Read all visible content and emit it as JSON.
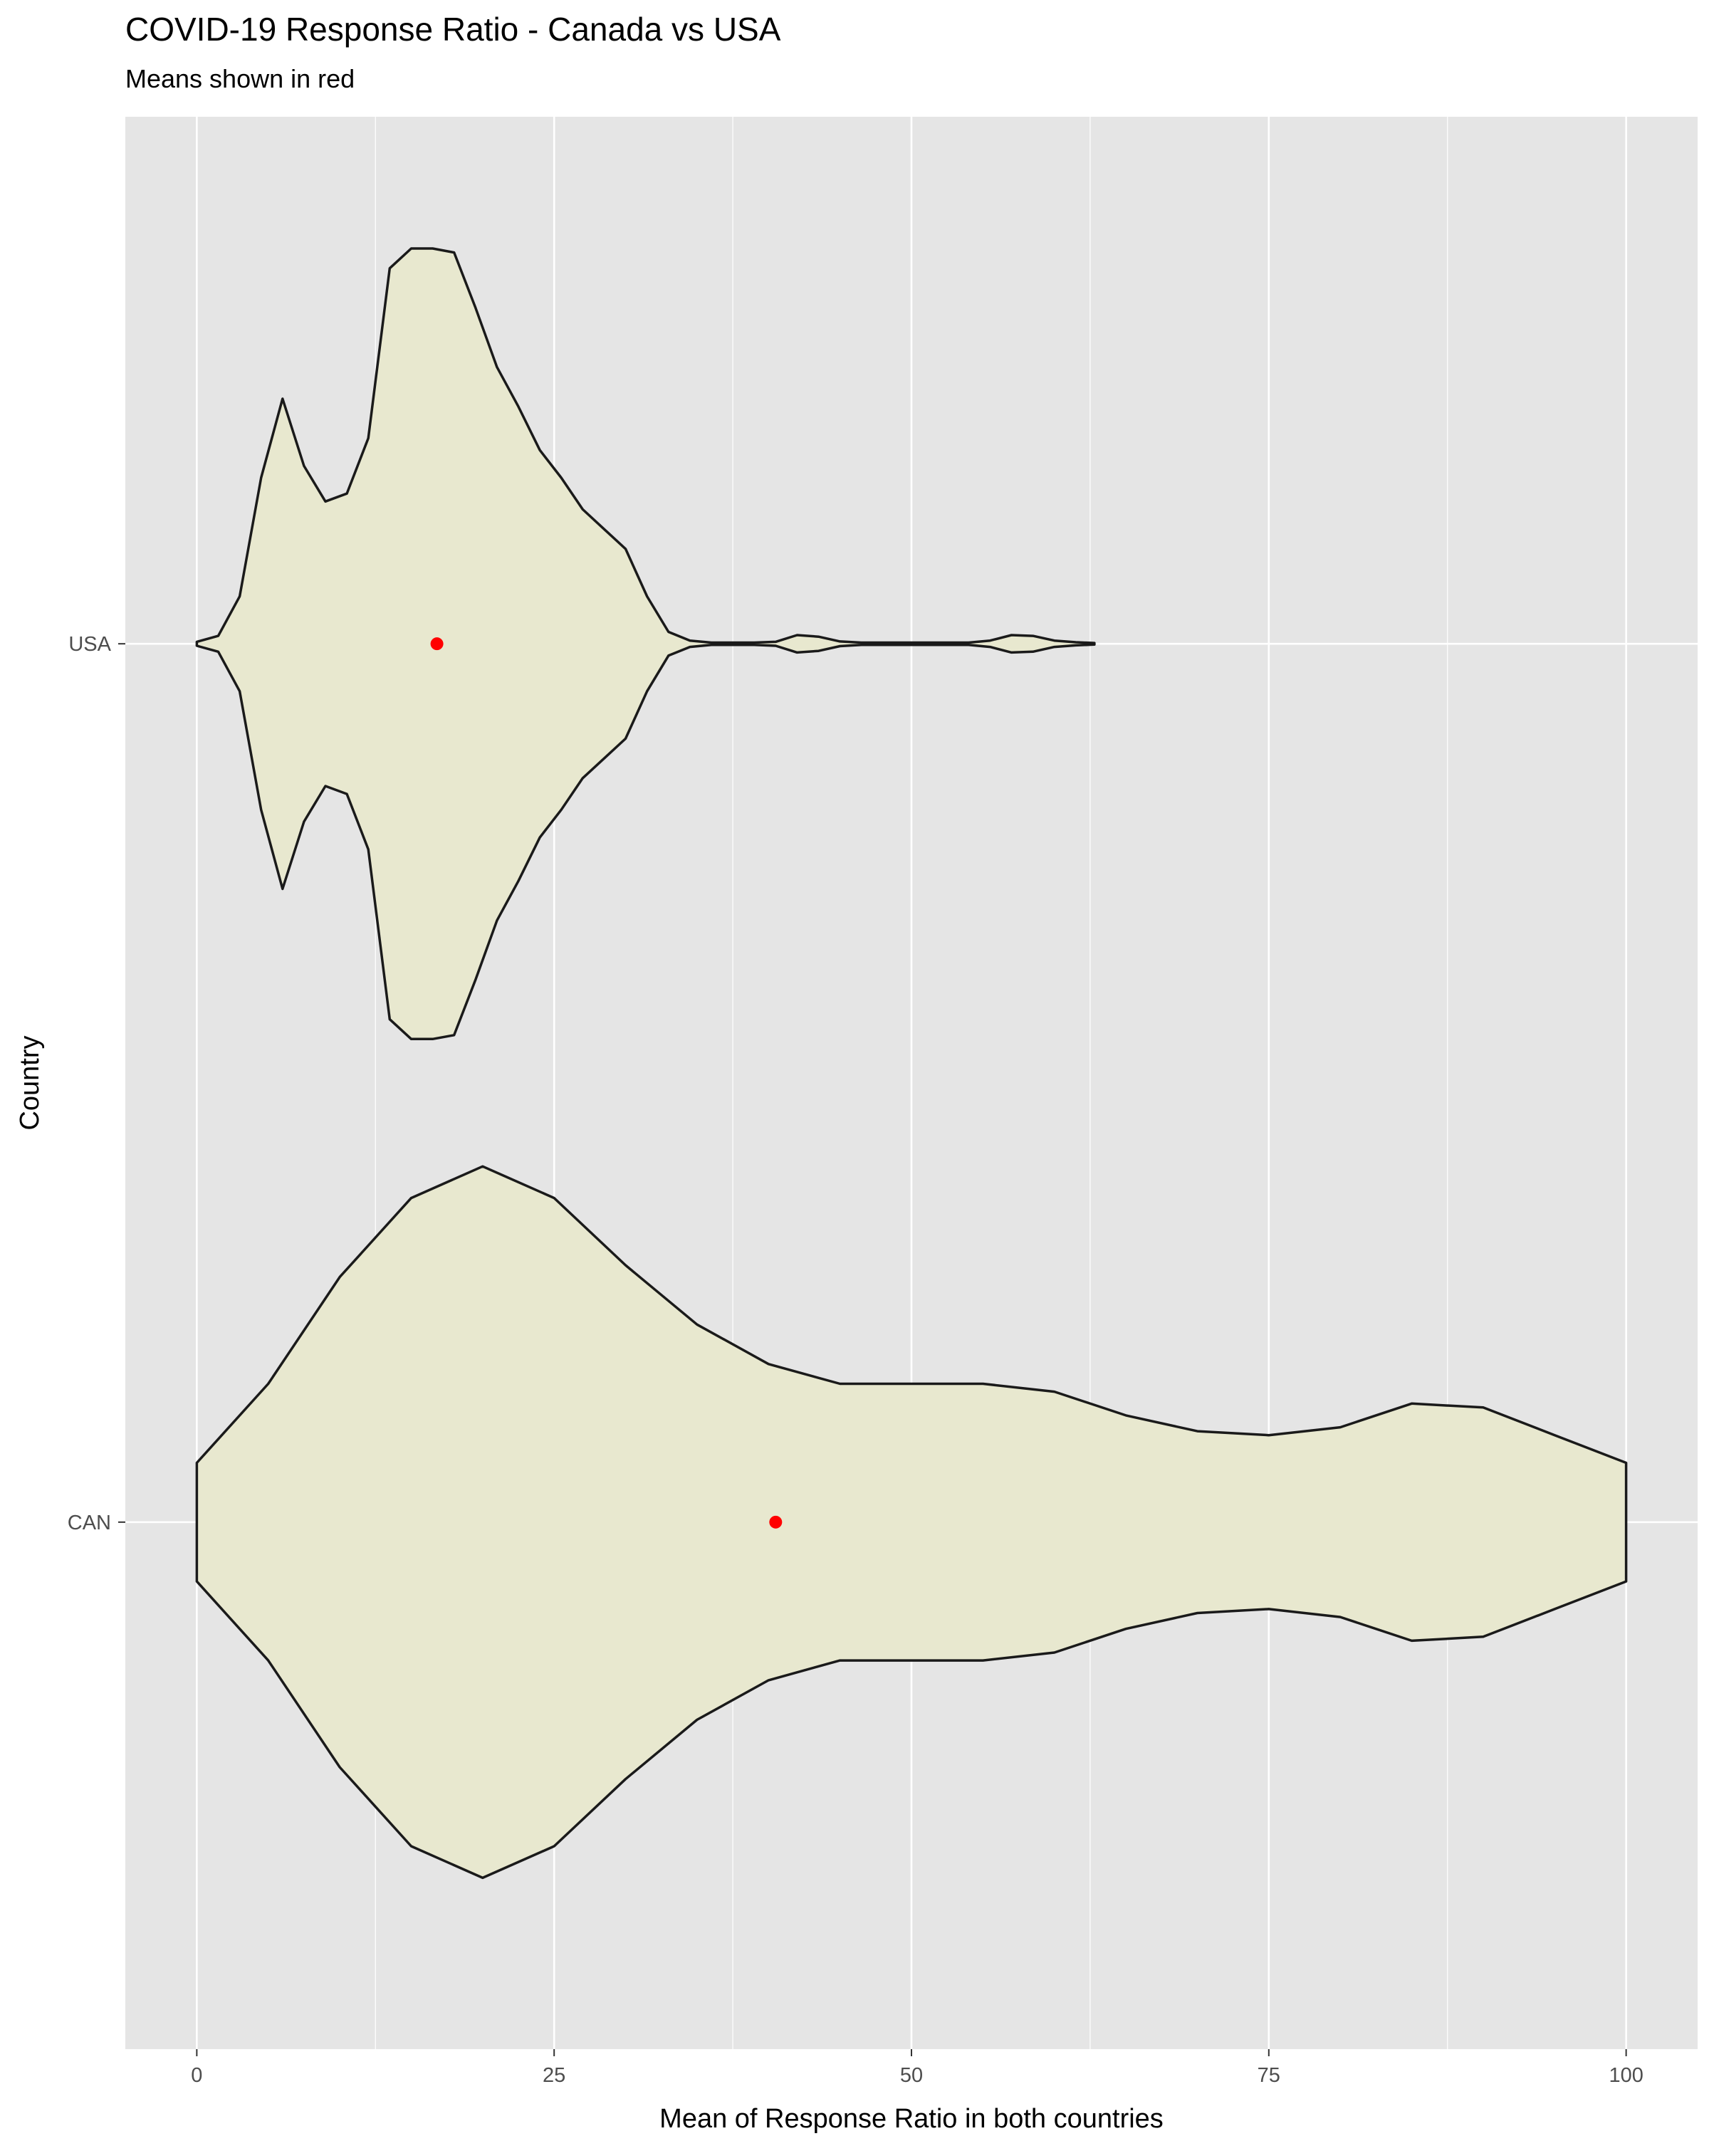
{
  "chart_data": {
    "type": "violin",
    "title": "COVID-19 Response Ratio - Canada vs USA",
    "subtitle": "Means shown in red",
    "xlabel": "Mean of Response Ratio in both countries",
    "ylabel": "Country",
    "xlim": [
      -5,
      105
    ],
    "x_ticks": [
      0,
      25,
      50,
      75,
      100
    ],
    "x_tick_labels": [
      "0",
      "25",
      "50",
      "75",
      "100"
    ],
    "categories": [
      "CAN",
      "USA"
    ],
    "grid": true,
    "colors": {
      "panel_background": "#e5e5e5",
      "grid": "#ffffff",
      "violin_fill": "#e8e8cf",
      "violin_outline": "#1a1a1a",
      "mean_point": "#ff0000"
    },
    "series": [
      {
        "category": "USA",
        "mean": 16.8,
        "density": [
          [
            0,
            0.005
          ],
          [
            1.5,
            0.02
          ],
          [
            3.0,
            0.12
          ],
          [
            4.5,
            0.42
          ],
          [
            6.0,
            0.62
          ],
          [
            7.5,
            0.45
          ],
          [
            9.0,
            0.36
          ],
          [
            10.5,
            0.38
          ],
          [
            12.0,
            0.52
          ],
          [
            13.5,
            0.95
          ],
          [
            15.0,
            1.0
          ],
          [
            16.5,
            1.0
          ],
          [
            18.0,
            0.99
          ],
          [
            19.5,
            0.85
          ],
          [
            21.0,
            0.7
          ],
          [
            22.5,
            0.6
          ],
          [
            24.0,
            0.49
          ],
          [
            25.5,
            0.42
          ],
          [
            27.0,
            0.34
          ],
          [
            28.5,
            0.29
          ],
          [
            30.0,
            0.24
          ],
          [
            31.5,
            0.12
          ],
          [
            33.0,
            0.03
          ],
          [
            34.5,
            0.008
          ],
          [
            36.0,
            0.003
          ],
          [
            39.0,
            0.003
          ],
          [
            40.5,
            0.005
          ],
          [
            42.0,
            0.022
          ],
          [
            43.5,
            0.018
          ],
          [
            45.0,
            0.006
          ],
          [
            46.5,
            0.003
          ],
          [
            54.0,
            0.003
          ],
          [
            55.5,
            0.008
          ],
          [
            57.0,
            0.022
          ],
          [
            58.5,
            0.02
          ],
          [
            60.0,
            0.008
          ],
          [
            61.5,
            0.004
          ],
          [
            62.8,
            0.002
          ]
        ]
      },
      {
        "category": "CAN",
        "mean": 40.5,
        "density": [
          [
            0,
            0.15
          ],
          [
            5,
            0.35
          ],
          [
            10,
            0.62
          ],
          [
            15,
            0.82
          ],
          [
            20,
            0.9
          ],
          [
            25,
            0.82
          ],
          [
            30,
            0.65
          ],
          [
            35,
            0.5
          ],
          [
            40,
            0.4
          ],
          [
            45,
            0.35
          ],
          [
            50,
            0.35
          ],
          [
            55,
            0.35
          ],
          [
            60,
            0.33
          ],
          [
            65,
            0.27
          ],
          [
            70,
            0.23
          ],
          [
            75,
            0.22
          ],
          [
            80,
            0.24
          ],
          [
            85,
            0.3
          ],
          [
            90,
            0.29
          ],
          [
            95,
            0.22
          ],
          [
            100,
            0.15
          ]
        ]
      }
    ]
  }
}
